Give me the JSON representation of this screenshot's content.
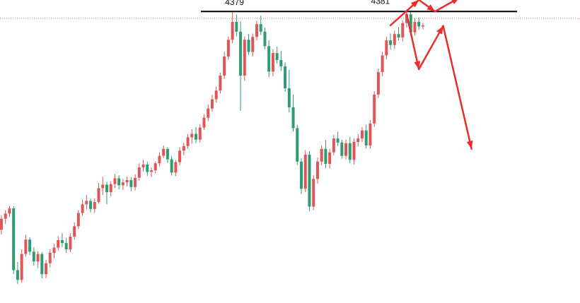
{
  "chart_data": {
    "type": "candlestick",
    "title": "",
    "xlabel": "",
    "ylabel": "",
    "ylim": [
      3880,
      4395
    ],
    "grid": false,
    "annotations": {
      "resistance": {
        "value": 4380
      },
      "current_price_line": {
        "value": 4368
      },
      "peak_labels": [
        {
          "text": "4379",
          "bar_index": 57,
          "value": 4379
        },
        {
          "text": "4381",
          "bar_index": 93,
          "value": 4381
        }
      ],
      "scenarios": [
        {
          "name": "breakout",
          "points": [
            [
              96,
              4356
            ],
            [
              103,
              4400
            ],
            [
              107,
              4380
            ],
            [
              113,
              4404
            ]
          ]
        },
        {
          "name": "rejection",
          "points": [
            [
              100,
              4375
            ],
            [
              103,
              4280
            ],
            [
              109,
              4355
            ],
            [
              116,
              4142
            ]
          ]
        }
      ]
    },
    "colors": {
      "up": "#e05555",
      "down": "#2e9c72",
      "line": "#000000",
      "arrow": "#ec2b2b",
      "price_line": "#e07070"
    },
    "candles": [
      [
        4002,
        4027,
        3994,
        4021
      ],
      [
        4021,
        4036,
        4012,
        4030
      ],
      [
        4030,
        4043,
        4024,
        4039
      ],
      [
        4039,
        4043,
        3925,
        3932
      ],
      [
        3932,
        3946,
        3908,
        3915
      ],
      [
        3915,
        3968,
        3910,
        3960
      ],
      [
        3960,
        3993,
        3955,
        3985
      ],
      [
        3985,
        3989,
        3958,
        3964
      ],
      [
        3964,
        3972,
        3940,
        3947
      ],
      [
        3947,
        3965,
        3936,
        3960
      ],
      [
        3960,
        3963,
        3918,
        3925
      ],
      [
        3925,
        3950,
        3918,
        3944
      ],
      [
        3944,
        3968,
        3937,
        3962
      ],
      [
        3962,
        3978,
        3953,
        3971
      ],
      [
        3971,
        3991,
        3966,
        3984
      ],
      [
        3984,
        3996,
        3972,
        3979
      ],
      [
        3979,
        3988,
        3962,
        3968
      ],
      [
        3968,
        3996,
        3963,
        3990
      ],
      [
        3990,
        4015,
        3985,
        4008
      ],
      [
        4008,
        4036,
        4003,
        4031
      ],
      [
        4031,
        4054,
        4026,
        4046
      ],
      [
        4046,
        4062,
        4037,
        4052
      ],
      [
        4052,
        4056,
        4032,
        4038
      ],
      [
        4038,
        4056,
        4031,
        4050
      ],
      [
        4050,
        4083,
        4047,
        4074
      ],
      [
        4074,
        4094,
        4062,
        4080
      ],
      [
        4080,
        4085,
        4046,
        4067
      ],
      [
        4067,
        4086,
        4060,
        4081
      ],
      [
        4081,
        4098,
        4074,
        4091
      ],
      [
        4091,
        4096,
        4072,
        4079
      ],
      [
        4079,
        4090,
        4071,
        4084
      ],
      [
        4084,
        4094,
        4077,
        4088
      ],
      [
        4088,
        4093,
        4069,
        4076
      ],
      [
        4076,
        4098,
        4070,
        4092
      ],
      [
        4092,
        4117,
        4087,
        4110
      ],
      [
        4110,
        4123,
        4103,
        4115
      ],
      [
        4115,
        4120,
        4095,
        4102
      ],
      [
        4102,
        4110,
        4093,
        4105
      ],
      [
        4105,
        4120,
        4100,
        4117
      ],
      [
        4117,
        4136,
        4112,
        4130
      ],
      [
        4130,
        4148,
        4126,
        4142
      ],
      [
        4142,
        4145,
        4118,
        4124
      ],
      [
        4124,
        4130,
        4096,
        4101
      ],
      [
        4101,
        4123,
        4095,
        4119
      ],
      [
        4119,
        4145,
        4114,
        4139
      ],
      [
        4139,
        4153,
        4131,
        4147
      ],
      [
        4147,
        4168,
        4142,
        4162
      ],
      [
        4162,
        4176,
        4151,
        4168
      ],
      [
        4168,
        4180,
        4152,
        4158
      ],
      [
        4158,
        4185,
        4153,
        4179
      ],
      [
        4179,
        4202,
        4175,
        4196
      ],
      [
        4196,
        4219,
        4190,
        4212
      ],
      [
        4212,
        4236,
        4206,
        4228
      ],
      [
        4228,
        4250,
        4222,
        4243
      ],
      [
        4243,
        4274,
        4238,
        4269
      ],
      [
        4269,
        4310,
        4263,
        4302
      ],
      [
        4302,
        4337,
        4296,
        4331
      ],
      [
        4331,
        4379,
        4325,
        4362
      ],
      [
        4362,
        4375,
        4337,
        4345
      ],
      [
        4345,
        4363,
        4208,
        4269
      ],
      [
        4269,
        4337,
        4260,
        4331
      ],
      [
        4331,
        4341,
        4305,
        4310
      ],
      [
        4310,
        4342,
        4302,
        4336
      ],
      [
        4336,
        4364,
        4330,
        4358
      ],
      [
        4358,
        4373,
        4339,
        4345
      ],
      [
        4345,
        4352,
        4315,
        4320
      ],
      [
        4320,
        4330,
        4266,
        4276
      ],
      [
        4276,
        4315,
        4268,
        4308
      ],
      [
        4308,
        4319,
        4290,
        4296
      ],
      [
        4296,
        4312,
        4277,
        4285
      ],
      [
        4285,
        4292,
        4241,
        4247
      ],
      [
        4247,
        4279,
        4205,
        4214
      ],
      [
        4214,
        4236,
        4172,
        4178
      ],
      [
        4178,
        4184,
        4114,
        4120
      ],
      [
        4120,
        4126,
        4064,
        4073
      ],
      [
        4073,
        4140,
        4067,
        4132
      ],
      [
        4132,
        4138,
        4034,
        4042
      ],
      [
        4042,
        4097,
        4036,
        4090
      ],
      [
        4090,
        4127,
        4082,
        4120
      ],
      [
        4120,
        4148,
        4114,
        4142
      ],
      [
        4142,
        4157,
        4109,
        4116
      ],
      [
        4116,
        4142,
        4108,
        4136
      ],
      [
        4136,
        4166,
        4131,
        4160
      ],
      [
        4160,
        4172,
        4147,
        4153
      ],
      [
        4153,
        4158,
        4125,
        4130
      ],
      [
        4130,
        4158,
        4124,
        4152
      ],
      [
        4152,
        4163,
        4117,
        4123
      ],
      [
        4123,
        4160,
        4115,
        4154
      ],
      [
        4154,
        4168,
        4146,
        4160
      ],
      [
        4160,
        4180,
        4154,
        4174
      ],
      [
        4174,
        4184,
        4143,
        4148
      ],
      [
        4148,
        4192,
        4142,
        4186
      ],
      [
        4186,
        4242,
        4180,
        4236
      ],
      [
        4236,
        4281,
        4230,
        4275
      ],
      [
        4275,
        4310,
        4268,
        4304
      ],
      [
        4304,
        4336,
        4297,
        4330
      ],
      [
        4330,
        4342,
        4314,
        4322
      ],
      [
        4322,
        4347,
        4315,
        4341
      ],
      [
        4341,
        4353,
        4330,
        4335
      ],
      [
        4335,
        4365,
        4328,
        4360
      ],
      [
        4360,
        4381,
        4352,
        4375
      ],
      [
        4375,
        4381,
        4338,
        4344
      ],
      [
        4344,
        4368,
        4339,
        4362
      ],
      [
        4362,
        4370,
        4348,
        4354
      ],
      [
        4354,
        4360,
        4349,
        4356
      ]
    ]
  }
}
